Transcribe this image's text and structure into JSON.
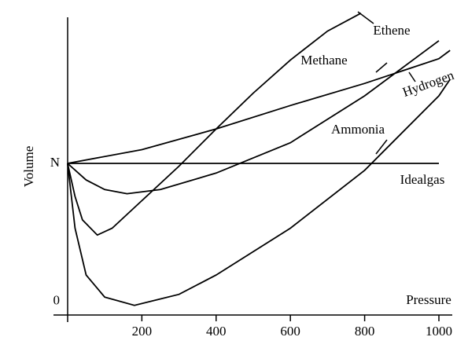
{
  "chart_data": {
    "type": "line",
    "xlabel": "Pressure",
    "ylabel": "Volume",
    "xlim": [
      -38,
      1036
    ],
    "ylim": [
      -0.1,
      2.1
    ],
    "xticks": [
      200,
      400,
      600,
      800,
      1000
    ],
    "yticks": [
      0,
      {
        "value": 1,
        "label": "N"
      }
    ],
    "color": "#000000",
    "series": [
      {
        "name": "Ethene",
        "x": [
          0,
          20,
          40,
          80,
          120,
          200,
          300,
          400,
          500,
          600,
          700,
          790
        ],
        "values": [
          1,
          0.76,
          0.59,
          0.48,
          0.53,
          0.73,
          0.98,
          1.25,
          1.51,
          1.75,
          1.96,
          2.09
        ]
      },
      {
        "name": "Methane",
        "x": [
          0,
          50,
          100,
          160,
          250,
          400,
          600,
          800,
          1000
        ],
        "values": [
          1,
          0.88,
          0.81,
          0.78,
          0.81,
          0.93,
          1.15,
          1.49,
          1.89
        ]
      },
      {
        "name": "Hydrogen",
        "x": [
          0,
          200,
          400,
          600,
          800,
          1000,
          1030
        ],
        "values": [
          1,
          1.1,
          1.25,
          1.42,
          1.58,
          1.76,
          1.82
        ]
      },
      {
        "name": "Ammonia",
        "x": [
          0,
          20,
          50,
          100,
          180,
          300,
          400,
          600,
          800,
          1000,
          1030
        ],
        "values": [
          1,
          0.53,
          0.19,
          0.03,
          -0.03,
          0.05,
          0.19,
          0.53,
          0.95,
          1.49,
          1.61
        ]
      },
      {
        "name": "Idealgas",
        "x": [
          0,
          1000
        ],
        "values": [
          1,
          1
        ]
      }
    ]
  }
}
